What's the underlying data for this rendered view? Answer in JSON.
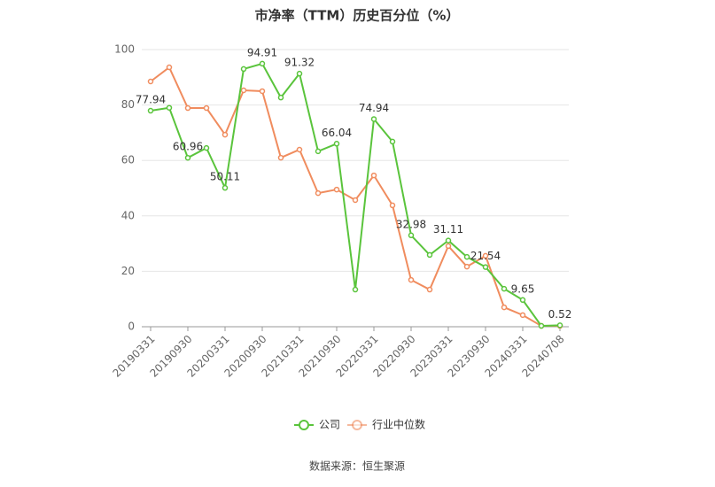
{
  "chart_data": {
    "type": "line",
    "title": "市净率（TTM）历史百分位（%）",
    "source": "数据来源：恒生聚源",
    "categories": [
      "20190331",
      null,
      "20190930",
      null,
      "20200331",
      null,
      "20200930",
      null,
      "20210331",
      null,
      "20210930",
      null,
      "20220331",
      null,
      "20220930",
      null,
      "20230331",
      null,
      "20230930",
      null,
      "20240331",
      null,
      "20240708"
    ],
    "series": [
      {
        "name": "公司",
        "color": "#5ac43c",
        "values": [
          77.94,
          79,
          60.96,
          64.5,
          50.11,
          93,
          94.91,
          82.7,
          91.32,
          63.3,
          66.04,
          13.4,
          74.94,
          66.8,
          32.98,
          25.9,
          31.11,
          25.2,
          21.54,
          13.7,
          9.65,
          0.3,
          0.52
        ]
      },
      {
        "name": "行业中位数",
        "color": "#f08c5e",
        "values": [
          88.5,
          93.6,
          78.9,
          78.9,
          69.3,
          85.3,
          85,
          61,
          63.9,
          48.2,
          49.5,
          45.7,
          54.6,
          43.8,
          16.9,
          13.4,
          29.1,
          21.7,
          25.6,
          7,
          4.2,
          0.3,
          0.3
        ]
      }
    ],
    "ylim": [
      0,
      100
    ],
    "yticks": [
      0,
      20,
      40,
      60,
      80,
      100
    ],
    "grid": true
  }
}
